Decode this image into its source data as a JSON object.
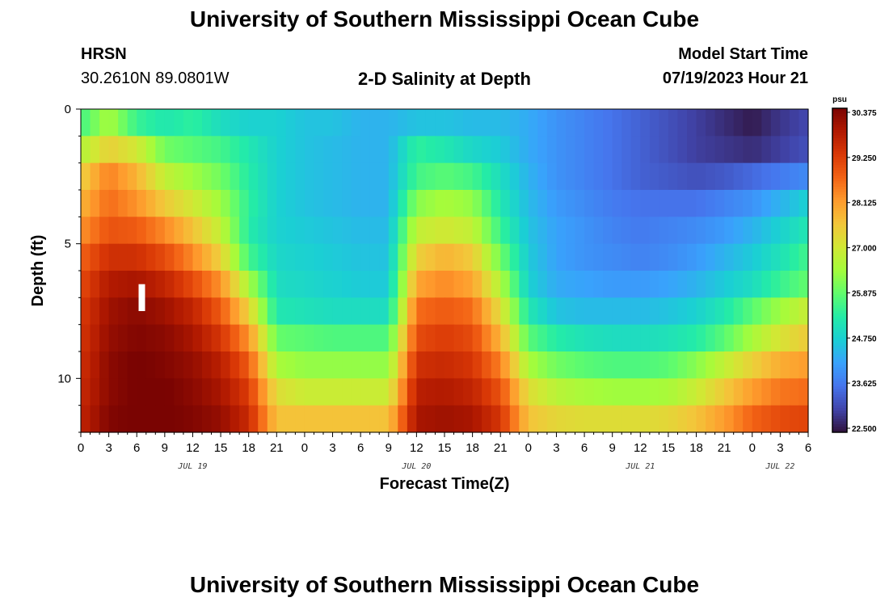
{
  "page": {
    "title_top": "University of Southern Mississippi Ocean Cube",
    "title_bottom": "University of Southern Mississippi Ocean Cube",
    "station_id": "HRSN",
    "station_coords": "30.2610N  89.0801W",
    "plot_title": "2-D Salinity at Depth",
    "model_start_label": "Model Start Time",
    "model_start_value": "07/19/2023 Hour 21"
  },
  "chart_data": {
    "type": "heatmap",
    "title": "2-D Salinity at Depth",
    "xlabel": "Forecast Time(Z)",
    "ylabel": "Depth (ft)",
    "x_hours_range": [
      0,
      78
    ],
    "x_tick_hours": [
      0,
      3,
      6,
      9,
      12,
      15,
      18,
      21,
      24,
      27,
      30,
      33,
      36,
      39,
      42,
      45,
      48,
      51,
      54,
      57,
      60,
      63,
      66,
      69,
      72,
      75,
      78
    ],
    "x_tick_labels": [
      "0",
      "3",
      "6",
      "9",
      "12",
      "15",
      "18",
      "21",
      "0",
      "3",
      "6",
      "9",
      "12",
      "15",
      "18",
      "21",
      "0",
      "3",
      "6",
      "9",
      "12",
      "15",
      "18",
      "21",
      "0",
      "3",
      "6"
    ],
    "day_labels": [
      {
        "hour": 12,
        "text": "JUL 19"
      },
      {
        "hour": 36,
        "text": "JUL 20"
      },
      {
        "hour": 60,
        "text": "JUL 21"
      },
      {
        "hour": 75,
        "text": "JUL 22"
      }
    ],
    "y_range": [
      0,
      12
    ],
    "y_tick_values": [
      0,
      5,
      10
    ],
    "y_tick_labels": [
      "0",
      "5",
      "10"
    ],
    "depth_levels_ft": [
      0.5,
      1.5,
      2.5,
      3.5,
      4.5,
      5.5,
      6.5,
      7.5,
      8.5,
      9.5,
      10.5,
      11.5
    ],
    "salinity_anchor_hours": [
      0,
      3,
      6,
      9,
      12,
      15,
      18,
      21,
      24,
      27,
      30,
      33,
      36,
      39,
      42,
      45,
      48,
      51,
      54,
      57,
      60,
      63,
      66,
      69,
      72,
      75,
      78
    ],
    "salinity_psu": [
      [
        25.6,
        26.5,
        25.5,
        25.2,
        25.4,
        25.0,
        24.8,
        24.8,
        24.6,
        24.6,
        24.4,
        24.4,
        24.6,
        24.6,
        24.5,
        24.5,
        24.3,
        24.0,
        23.8,
        23.6,
        23.4,
        23.2,
        23.0,
        22.8,
        22.6,
        22.9,
        23.1
      ],
      [
        26.6,
        27.4,
        27.0,
        26.0,
        25.8,
        25.6,
        25.2,
        24.8,
        24.6,
        24.5,
        24.4,
        24.4,
        25.4,
        25.2,
        24.9,
        24.7,
        24.3,
        24.0,
        23.8,
        23.6,
        23.4,
        23.2,
        23.0,
        22.9,
        22.8,
        23.0,
        23.2
      ],
      [
        27.4,
        28.4,
        27.8,
        26.8,
        26.4,
        26.0,
        25.3,
        24.8,
        24.6,
        24.5,
        24.4,
        24.4,
        25.6,
        25.8,
        25.6,
        25.0,
        24.4,
        24.0,
        23.8,
        23.6,
        23.4,
        23.3,
        23.2,
        23.3,
        23.5,
        23.7,
        23.9
      ],
      [
        27.8,
        28.6,
        28.2,
        27.5,
        27.0,
        26.4,
        25.4,
        24.8,
        24.6,
        24.5,
        24.4,
        24.4,
        26.2,
        26.5,
        26.3,
        25.2,
        24.5,
        24.1,
        23.9,
        23.7,
        23.6,
        23.6,
        23.6,
        23.8,
        24.0,
        24.4,
        24.8
      ],
      [
        28.2,
        28.9,
        28.8,
        28.3,
        27.6,
        26.8,
        25.3,
        24.8,
        24.7,
        24.6,
        24.5,
        24.5,
        26.8,
        27.0,
        26.8,
        25.5,
        24.6,
        24.2,
        24.0,
        23.8,
        23.7,
        23.8,
        23.9,
        24.1,
        24.4,
        24.8,
        25.2
      ],
      [
        28.7,
        29.4,
        29.4,
        29.0,
        28.3,
        27.4,
        25.6,
        24.9,
        24.8,
        24.7,
        24.6,
        24.6,
        27.4,
        27.8,
        27.5,
        26.0,
        24.7,
        24.2,
        24.0,
        23.9,
        23.8,
        23.9,
        24.1,
        24.4,
        24.7,
        25.1,
        25.6
      ],
      [
        29.0,
        29.8,
        29.9,
        29.6,
        29.0,
        28.2,
        26.5,
        25.0,
        24.9,
        24.8,
        24.7,
        24.7,
        28.0,
        28.3,
        28.0,
        26.6,
        24.8,
        24.3,
        24.2,
        24.1,
        24.1,
        24.2,
        24.4,
        24.7,
        25.0,
        25.5,
        25.9
      ],
      [
        29.2,
        30.0,
        30.2,
        30.0,
        29.6,
        28.8,
        27.4,
        25.2,
        25.1,
        25.0,
        25.0,
        25.0,
        28.6,
        28.8,
        28.6,
        27.2,
        25.2,
        24.6,
        24.5,
        24.5,
        24.5,
        24.6,
        24.8,
        25.2,
        25.8,
        26.4,
        26.9
      ],
      [
        29.3,
        30.1,
        30.3,
        30.2,
        29.9,
        29.3,
        28.2,
        25.9,
        25.8,
        25.7,
        25.7,
        25.7,
        29.0,
        29.2,
        29.0,
        27.8,
        25.8,
        25.3,
        25.1,
        25.0,
        25.0,
        25.1,
        25.3,
        25.8,
        26.5,
        27.1,
        27.5
      ],
      [
        29.4,
        30.2,
        30.4,
        30.3,
        30.1,
        29.7,
        28.8,
        26.5,
        26.3,
        26.3,
        26.3,
        26.3,
        29.4,
        29.5,
        29.3,
        28.4,
        26.5,
        26.0,
        25.8,
        25.7,
        25.7,
        25.8,
        26.2,
        26.8,
        27.4,
        27.9,
        28.1
      ],
      [
        29.5,
        30.2,
        30.4,
        30.4,
        30.2,
        29.9,
        29.2,
        27.2,
        26.9,
        26.9,
        26.9,
        26.9,
        29.7,
        29.8,
        29.6,
        28.9,
        27.2,
        26.7,
        26.5,
        26.4,
        26.4,
        26.5,
        26.9,
        27.5,
        28.1,
        28.5,
        28.6
      ],
      [
        29.6,
        30.3,
        30.4,
        30.4,
        30.3,
        30.1,
        29.5,
        27.6,
        27.6,
        27.6,
        27.6,
        27.6,
        29.9,
        30.0,
        29.9,
        29.3,
        27.6,
        27.3,
        27.2,
        27.2,
        27.2,
        27.3,
        27.6,
        28.1,
        28.7,
        29.0,
        29.1
      ]
    ],
    "colorbar": {
      "unit": "psu",
      "min": 22.5,
      "max": 30.375,
      "tick_values": [
        30.375,
        29.25,
        28.125,
        27.0,
        25.875,
        24.75,
        23.625,
        22.5
      ],
      "tick_labels": [
        "30.375",
        "29.250",
        "28.125",
        "27.000",
        "25.875",
        "24.750",
        "23.625",
        "22.500"
      ]
    },
    "marker": {
      "hour": 6.5,
      "depth_range_ft": [
        6.5,
        7.5
      ],
      "color": "#ffffff"
    },
    "colormap": [
      "#30123b",
      "#4145ab",
      "#4675ed",
      "#39a2fc",
      "#1bcfd4",
      "#24eca6",
      "#61fc6c",
      "#a4fc3b",
      "#d1e834",
      "#f3c63a",
      "#fe9b2d",
      "#f36315",
      "#d93806",
      "#b11901",
      "#7a0402"
    ]
  }
}
